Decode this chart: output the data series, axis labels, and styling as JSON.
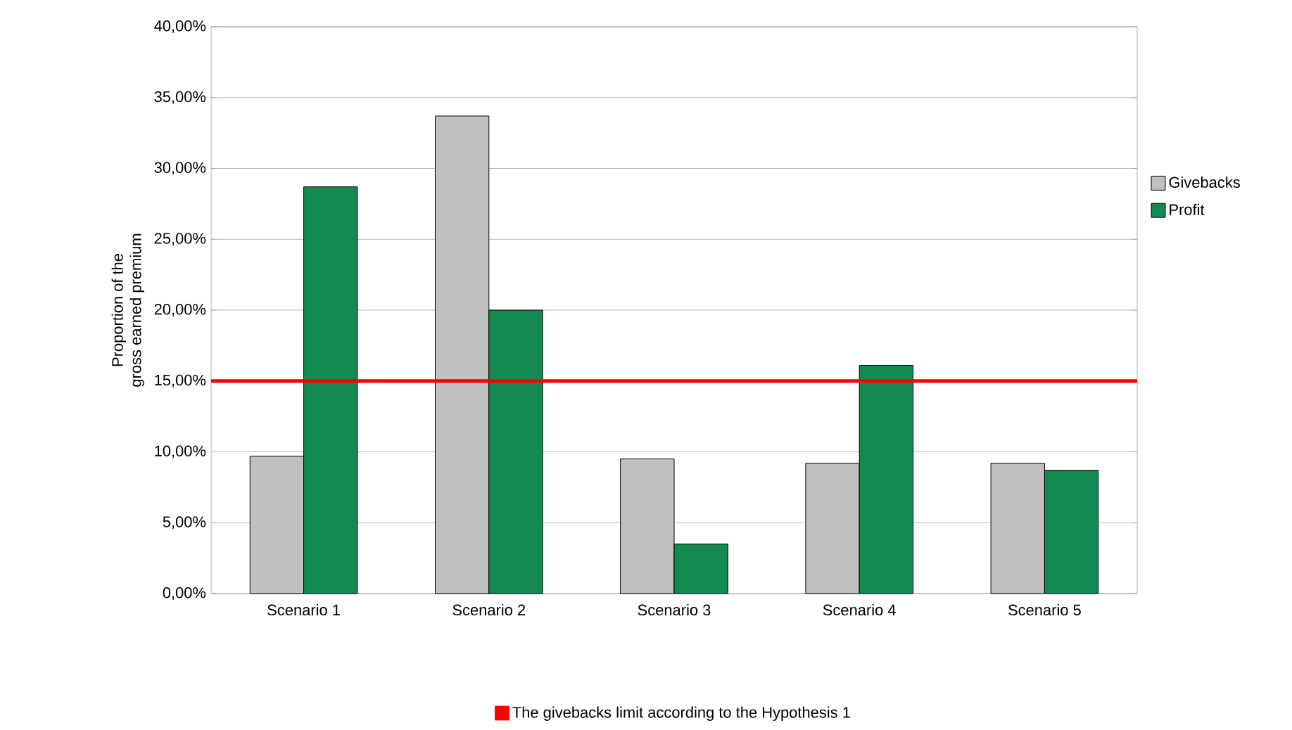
{
  "chart_data": {
    "type": "bar",
    "ylabel": "Proportion of the\ngross earned premium",
    "categories": [
      "Scenario 1",
      "Scenario 2",
      "Scenario 3",
      "Scenario 4",
      "Scenario 5"
    ],
    "series": [
      {
        "name": "Givebacks",
        "color": "#c0c0c0",
        "values": [
          9.7,
          33.7,
          9.5,
          9.2,
          9.2
        ]
      },
      {
        "name": "Profit",
        "color": "#138a52",
        "values": [
          28.7,
          20.0,
          3.5,
          16.1,
          8.7
        ]
      }
    ],
    "ylim": [
      0,
      40
    ],
    "yticks": [
      {
        "value": 0,
        "label": "0,00%"
      },
      {
        "value": 5,
        "label": "5,00%"
      },
      {
        "value": 10,
        "label": "10,00%"
      },
      {
        "value": 15,
        "label": "15,00%"
      },
      {
        "value": 20,
        "label": "20,00%"
      },
      {
        "value": 25,
        "label": "25,00%"
      },
      {
        "value": 30,
        "label": "30,00%"
      },
      {
        "value": 35,
        "label": "35,00%"
      },
      {
        "value": 40,
        "label": "40,00%"
      }
    ],
    "grid": "y",
    "legend": "right",
    "ref_lines": [
      {
        "axis": "y",
        "value": 15,
        "label": "The givebacks limit according to the Hypothesis 1",
        "color": "#ff0000"
      }
    ]
  }
}
